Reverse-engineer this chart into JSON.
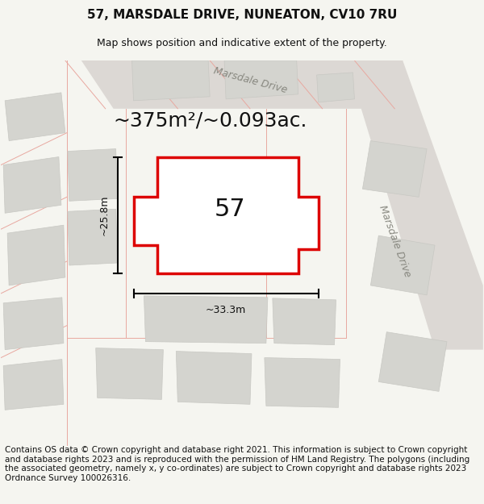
{
  "title_line1": "57, MARSDALE DRIVE, NUNEATON, CV10 7RU",
  "title_line2": "Map shows position and indicative extent of the property.",
  "area_text": "~375m²/~0.093ac.",
  "label_57": "57",
  "dim_vertical": "~25.8m",
  "dim_horizontal": "~33.3m",
  "road_label": "Marsdale Drive",
  "road_label_top": "Marsdale Drive",
  "footer_text": "Contains OS data © Crown copyright and database right 2021. This information is subject to Crown copyright and database rights 2023 and is reproduced with the permission of HM Land Registry. The polygons (including the associated geometry, namely x, y co-ordinates) are subject to Crown copyright and database rights 2023 Ordnance Survey 100026316.",
  "bg_color": "#f5f5f0",
  "map_bg": "#e8e8e3",
  "plot_fill": "#ffffff",
  "plot_edge": "#dd0000",
  "building_color": "#d4d4cf",
  "building_ec": "#c8c8c3",
  "pink_color": "#e8a8a0",
  "title_fontsize": 11,
  "subtitle_fontsize": 9,
  "area_fontsize": 18,
  "label_fontsize": 22,
  "footer_fontsize": 7.5,
  "dim_fontsize": 9,
  "road_fontsize": 9
}
